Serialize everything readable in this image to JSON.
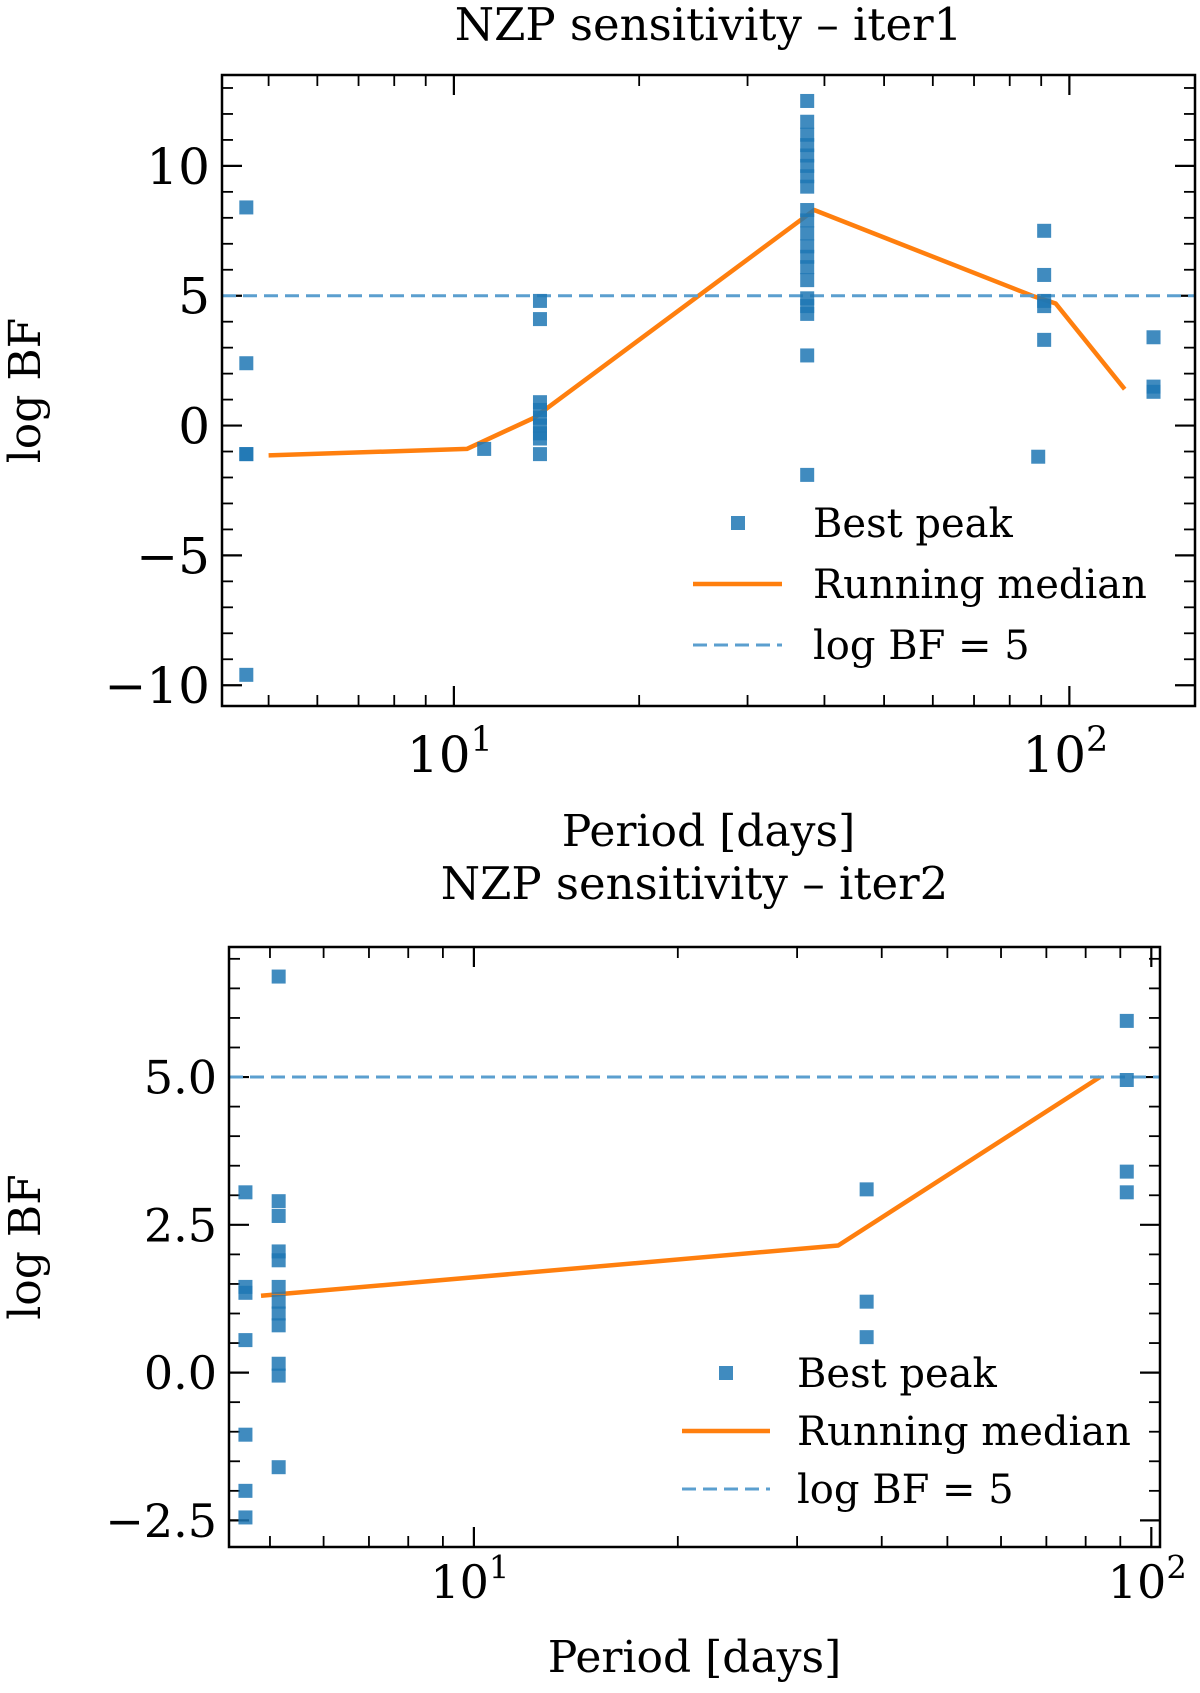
{
  "chart_data": [
    {
      "type": "scatter",
      "title": "NZP sensitivity – iter1",
      "xlabel": "Period [days]",
      "ylabel": "log BF",
      "xscale": "log",
      "xlim": [
        4.2,
        160
      ],
      "ylim": [
        -10.8,
        13.5
      ],
      "x_major_ticks": [
        {
          "value": 10,
          "base": "10",
          "exp": "1"
        },
        {
          "value": 100,
          "base": "10",
          "exp": "2"
        }
      ],
      "y_ticks": [
        {
          "value": 10,
          "label": "10"
        },
        {
          "value": 5,
          "label": "5"
        },
        {
          "value": 0,
          "label": "0"
        },
        {
          "value": -5,
          "label": "−5"
        },
        {
          "value": -10,
          "label": "−10"
        }
      ],
      "y_minor_step": 1,
      "series": [
        {
          "name": "Best peak",
          "kind": "scatter",
          "color": "#1f77b4",
          "points": [
            [
              4.6,
              8.4
            ],
            [
              4.6,
              2.4
            ],
            [
              4.6,
              -1.1
            ],
            [
              4.6,
              -1.1
            ],
            [
              4.6,
              -9.6
            ],
            [
              11.2,
              -0.9
            ],
            [
              13.8,
              4.8
            ],
            [
              13.8,
              4.1
            ],
            [
              13.8,
              0.9
            ],
            [
              13.8,
              0.6
            ],
            [
              13.8,
              0.3
            ],
            [
              13.8,
              0.0
            ],
            [
              13.8,
              -0.3
            ],
            [
              13.8,
              -0.5
            ],
            [
              13.8,
              -1.1
            ],
            [
              37.5,
              12.5
            ],
            [
              37.5,
              11.7
            ],
            [
              37.5,
              11.2
            ],
            [
              37.5,
              10.8
            ],
            [
              37.5,
              10.4
            ],
            [
              37.5,
              10.0
            ],
            [
              37.5,
              9.6
            ],
            [
              37.5,
              9.2
            ],
            [
              37.5,
              8.3
            ],
            [
              37.5,
              7.9
            ],
            [
              37.5,
              7.4
            ],
            [
              37.5,
              6.9
            ],
            [
              37.5,
              6.5
            ],
            [
              37.5,
              6.1
            ],
            [
              37.5,
              5.6
            ],
            [
              37.5,
              4.9
            ],
            [
              37.5,
              4.6
            ],
            [
              37.5,
              4.3
            ],
            [
              37.5,
              2.7
            ],
            [
              37.5,
              -1.9
            ],
            [
              91,
              7.5
            ],
            [
              91,
              5.8
            ],
            [
              91,
              4.8
            ],
            [
              91,
              4.6
            ],
            [
              91,
              3.3
            ],
            [
              89,
              -1.2
            ],
            [
              137,
              3.4
            ],
            [
              137,
              1.5
            ],
            [
              137,
              1.3
            ]
          ]
        },
        {
          "name": "Running median",
          "kind": "line",
          "color": "#ff7f0e",
          "points": [
            [
              5.0,
              -1.15
            ],
            [
              10.5,
              -0.9
            ],
            [
              13.5,
              0.3
            ],
            [
              38.5,
              8.3
            ],
            [
              87,
              5.0
            ],
            [
              95,
              4.7
            ],
            [
              123,
              1.4
            ]
          ]
        },
        {
          "name": "log BF = 5",
          "kind": "hline",
          "color": "#5b9fcf",
          "y": 5
        }
      ],
      "legend": {
        "position": "lower-right",
        "entries": [
          "Best peak",
          "Running median",
          "log BF = 5"
        ]
      }
    },
    {
      "type": "scatter",
      "title": "NZP sensitivity – iter2",
      "xlabel": "Period [days]",
      "ylabel": "log BF",
      "xscale": "log",
      "xlim": [
        4.35,
        103
      ],
      "ylim": [
        -2.95,
        7.2
      ],
      "x_major_ticks": [
        {
          "value": 10,
          "base": "10",
          "exp": "1"
        },
        {
          "value": 100,
          "base": "10",
          "exp": "2"
        }
      ],
      "y_ticks": [
        {
          "value": 5,
          "label": "5.0"
        },
        {
          "value": 2.5,
          "label": "2.5"
        },
        {
          "value": 0,
          "label": "0.0"
        },
        {
          "value": -2.5,
          "label": "−2.5"
        }
      ],
      "y_minor_step": 0.5,
      "series": [
        {
          "name": "Best peak",
          "kind": "scatter",
          "color": "#1f77b4",
          "points": [
            [
              4.6,
              3.05
            ],
            [
              4.6,
              1.45
            ],
            [
              4.6,
              1.35
            ],
            [
              4.6,
              0.55
            ],
            [
              4.6,
              -1.05
            ],
            [
              4.6,
              -2.0
            ],
            [
              4.6,
              -2.45
            ],
            [
              5.15,
              6.7
            ],
            [
              5.15,
              2.9
            ],
            [
              5.15,
              2.65
            ],
            [
              5.15,
              2.05
            ],
            [
              5.15,
              1.9
            ],
            [
              5.15,
              1.45
            ],
            [
              5.15,
              1.2
            ],
            [
              5.15,
              1.0
            ],
            [
              5.15,
              0.8
            ],
            [
              5.15,
              0.15
            ],
            [
              5.15,
              -0.05
            ],
            [
              5.15,
              -1.6
            ],
            [
              38,
              3.1
            ],
            [
              38,
              1.2
            ],
            [
              38,
              0.6
            ],
            [
              92,
              5.95
            ],
            [
              92,
              4.95
            ],
            [
              92,
              3.4
            ],
            [
              92,
              3.05
            ]
          ]
        },
        {
          "name": "Running median",
          "kind": "line",
          "color": "#ff7f0e",
          "points": [
            [
              4.85,
              1.3
            ],
            [
              34.5,
              2.15
            ],
            [
              84,
              5.0
            ]
          ]
        },
        {
          "name": "log BF = 5",
          "kind": "hline",
          "color": "#5b9fcf",
          "y": 5
        }
      ],
      "legend": {
        "position": "lower-right",
        "entries": [
          "Best peak",
          "Running median",
          "log BF = 5"
        ]
      }
    }
  ]
}
